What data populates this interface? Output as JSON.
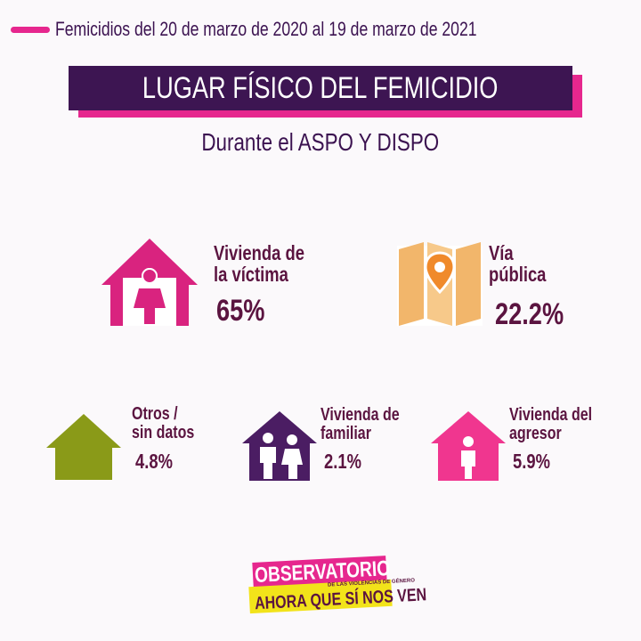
{
  "header": {
    "period": "Femicidios del 20 de marzo de 2020 al 19 de marzo de 2021",
    "title": "LUGAR FÍSICO DEL FEMICIDIO",
    "subtitle": "Durante el ASPO Y DISPO"
  },
  "items": [
    {
      "line1": "Vivienda de",
      "line2": "la víctima",
      "value": "65%",
      "icon": "house-woman-icon",
      "color": "#d9237f"
    },
    {
      "line1": "Vía",
      "line2": "pública",
      "value": "22.2%",
      "icon": "map-pin-icon",
      "color": "#f2b66b"
    },
    {
      "line1": "Otros /",
      "line2": "sin datos",
      "value": "4.8%",
      "icon": "house-icon",
      "color": "#8a9a18"
    },
    {
      "line1": "Vivienda de",
      "line2": "familiar",
      "value": "2.1%",
      "icon": "house-family-icon",
      "color": "#4b1d63"
    },
    {
      "line1": "Vivienda del",
      "line2": "agresor",
      "value": "5.9%",
      "icon": "house-man-icon",
      "color": "#f0368f"
    }
  ],
  "logo": {
    "line1": "OBSERVATORIO",
    "small": "DE LAS VIOLENCIAS DE GÉNERO",
    "line2": "AHORA QUE SÍ NOS VEN"
  }
}
